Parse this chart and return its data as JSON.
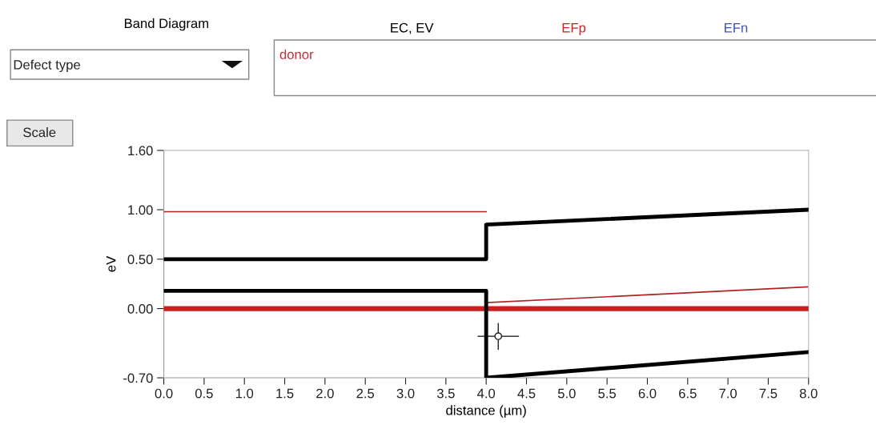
{
  "chart_data": {
    "type": "line",
    "title": "Band Diagram",
    "xlabel": "distance (µm)",
    "ylabel": "eV",
    "xlim": [
      0,
      8
    ],
    "xticks": [
      {
        "value": 0,
        "label": "0.0"
      },
      {
        "value": 0.5,
        "label": "0.5"
      },
      {
        "value": 1,
        "label": "1.0"
      },
      {
        "value": 1.5,
        "label": "1.5"
      },
      {
        "value": 2,
        "label": "2.0"
      },
      {
        "value": 2.5,
        "label": "2.5"
      },
      {
        "value": 3,
        "label": "3.0"
      },
      {
        "value": 3.5,
        "label": "3.5"
      },
      {
        "value": 4,
        "label": "4.0"
      },
      {
        "value": 4.5,
        "label": "4.5"
      },
      {
        "value": 5,
        "label": "5.0"
      },
      {
        "value": 5.5,
        "label": "5.5"
      },
      {
        "value": 6,
        "label": "6.0"
      },
      {
        "value": 6.5,
        "label": "6.5"
      },
      {
        "value": 7,
        "label": "7.0"
      },
      {
        "value": 7.5,
        "label": "7.5"
      },
      {
        "value": 8,
        "label": "8.0"
      }
    ],
    "ylim": [
      -0.7,
      1.6
    ],
    "yticks": [
      {
        "value": -0.7,
        "label": "-0.70"
      },
      {
        "value": 0,
        "label": "0.00"
      },
      {
        "value": 0.5,
        "label": "0.50"
      },
      {
        "value": 1,
        "label": "1.00"
      },
      {
        "value": 1.6,
        "label": "1.60"
      }
    ],
    "grid": false,
    "legend": "top",
    "marker": "none",
    "line_style": "solid",
    "series": [
      {
        "name": "EC, EV",
        "color": "#000000",
        "x": [
          0,
          4,
          4,
          8
        ],
        "values": [
          0.5,
          0.5,
          0.85,
          1.0
        ]
      },
      {
        "color": "#000000",
        "x": [
          0,
          4,
          4,
          8
        ],
        "values": [
          0.18,
          0.18,
          -0.7,
          -0.44
        ]
      },
      {
        "name": "EFp",
        "color": "#cc1f1f",
        "x": [
          0,
          8
        ],
        "values": [
          0,
          0
        ]
      },
      {
        "name": "EFn",
        "color": "#3a55b0"
      },
      {
        "color": "#b22222",
        "x": [
          0,
          4
        ],
        "values": [
          0.98,
          0.98
        ]
      },
      {
        "color": "#b22222",
        "x": [
          4,
          8
        ],
        "values": [
          0.06,
          0.22
        ]
      }
    ],
    "annotations": [
      "Defect type",
      "donor",
      "Scale"
    ]
  }
}
